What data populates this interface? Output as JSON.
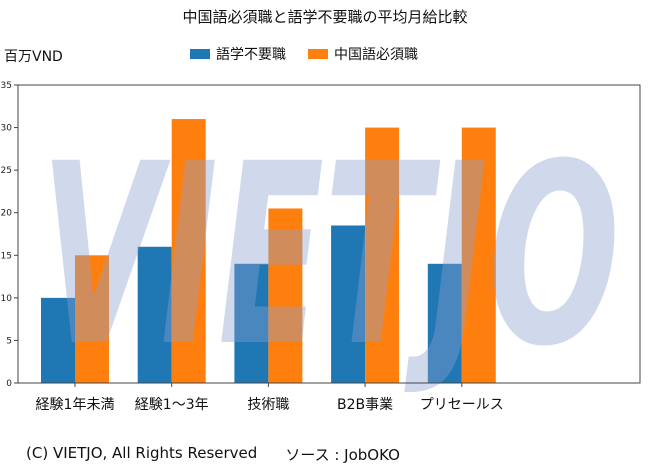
{
  "chart_data": {
    "type": "bar",
    "title": "中国語必須職と語学不要職の平均月給比較",
    "ylabel": "百万VND",
    "xlabel": "",
    "ylim": [
      0,
      35
    ],
    "yticks": [
      0,
      5,
      10,
      15,
      20,
      25,
      30,
      35
    ],
    "categories": [
      "経験1年未満",
      "経験1～3年",
      "技術職",
      "B2B事業",
      "プリセールス"
    ],
    "series": [
      {
        "name": "語学不要職",
        "color": "#1f77b4",
        "values": [
          10,
          16,
          14,
          18.5,
          14
        ]
      },
      {
        "name": "中国語必須職",
        "color": "#ff7f0e",
        "values": [
          15,
          31,
          20.5,
          30,
          30
        ]
      }
    ],
    "legend_position": "top-center",
    "grid": false
  },
  "watermark": "VIETJO",
  "footer": {
    "copyright": "(C) VIETJO, All Rights Reserved",
    "source": "ソース : JobOKO"
  }
}
